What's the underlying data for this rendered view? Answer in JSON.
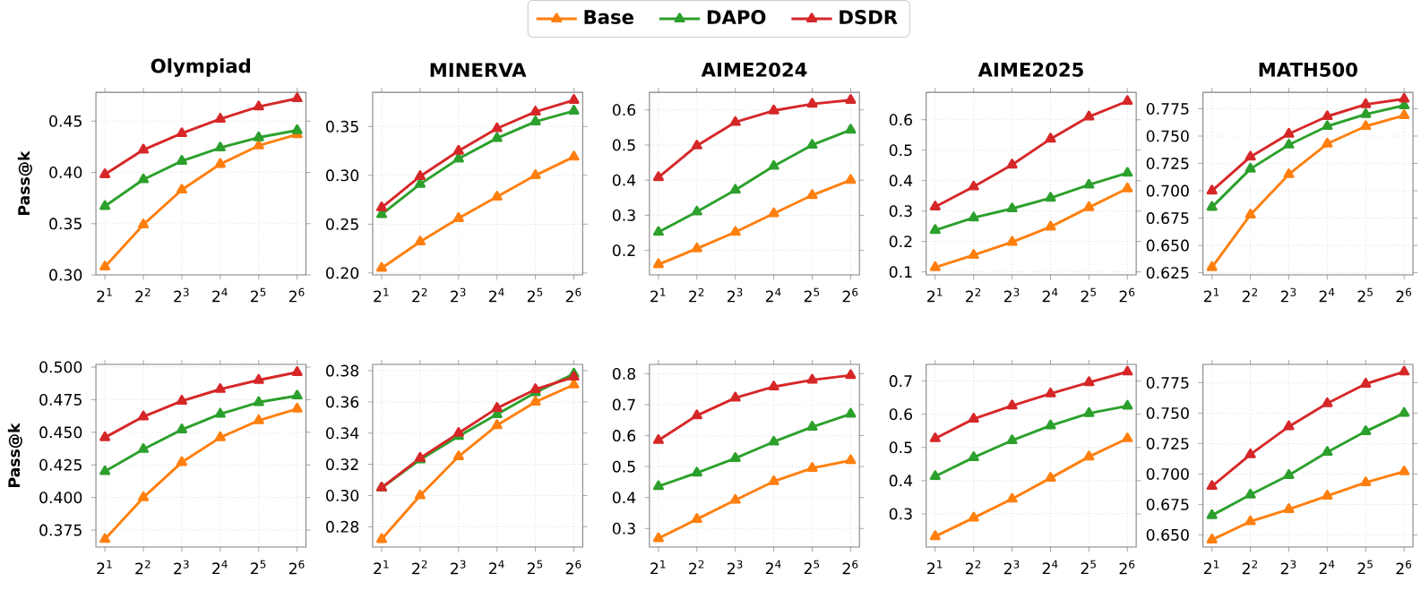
{
  "chart_data": [
    {
      "type": "line",
      "title": "Olympiad",
      "ylabel": "Pass@k",
      "log": "x",
      "grid": true,
      "marker": "triangle",
      "legend": "top",
      "x": [
        2,
        4,
        8,
        16,
        32,
        64
      ],
      "xlim": [
        1.7,
        75
      ],
      "xticks": [
        {
          "value": 2,
          "label": "2$^{1}$"
        },
        {
          "value": 4,
          "label": "2$^{2}$"
        },
        {
          "value": 8,
          "label": "2$^{3}$"
        },
        {
          "value": 16,
          "label": "2$^{4}$"
        },
        {
          "value": 32,
          "label": "2$^{5}$"
        },
        {
          "value": 64,
          "label": "2$^{6}$"
        }
      ],
      "ylim": [
        0.3,
        0.478
      ],
      "yticks": [
        {
          "value": 0.3,
          "label": "0.30"
        },
        {
          "value": 0.35,
          "label": "0.35"
        },
        {
          "value": 0.4,
          "label": "0.40"
        },
        {
          "value": 0.45,
          "label": "0.45"
        }
      ],
      "series": [
        {
          "name": "Base",
          "color": "#ff7f0e",
          "values": [
            0.308,
            0.349,
            0.383,
            0.408,
            0.426,
            0.437
          ]
        },
        {
          "name": "DAPO",
          "color": "#2ca02c",
          "values": [
            0.367,
            0.393,
            0.411,
            0.424,
            0.434,
            0.441
          ]
        },
        {
          "name": "DSDR",
          "color": "#d62728",
          "values": [
            0.398,
            0.422,
            0.438,
            0.452,
            0.464,
            0.472
          ]
        }
      ]
    },
    {
      "type": "line",
      "title": "MINERVA",
      "log": "x",
      "grid": true,
      "marker": "triangle",
      "x": [
        2,
        4,
        8,
        16,
        32,
        64
      ],
      "xlim": [
        1.7,
        75
      ],
      "xticks": [
        {
          "value": 2,
          "label": "2$^{1}$"
        },
        {
          "value": 4,
          "label": "2$^{2}$"
        },
        {
          "value": 8,
          "label": "2$^{3}$"
        },
        {
          "value": 16,
          "label": "2$^{4}$"
        },
        {
          "value": 32,
          "label": "2$^{5}$"
        },
        {
          "value": 64,
          "label": "2$^{6}$"
        }
      ],
      "ylim": [
        0.198,
        0.385
      ],
      "yticks": [
        {
          "value": 0.2,
          "label": "0.20"
        },
        {
          "value": 0.25,
          "label": "0.25"
        },
        {
          "value": 0.3,
          "label": "0.30"
        },
        {
          "value": 0.35,
          "label": "0.35"
        }
      ],
      "series": [
        {
          "color": "#ff7f0e",
          "values": [
            0.205,
            0.232,
            0.256,
            0.278,
            0.3,
            0.319
          ]
        },
        {
          "color": "#2ca02c",
          "values": [
            0.26,
            0.291,
            0.317,
            0.338,
            0.355,
            0.366
          ]
        },
        {
          "color": "#d62728",
          "values": [
            0.267,
            0.299,
            0.325,
            0.348,
            0.365,
            0.377
          ]
        }
      ]
    },
    {
      "type": "line",
      "title": "AIME2024",
      "log": "x",
      "grid": true,
      "marker": "triangle",
      "x": [
        2,
        4,
        8,
        16,
        32,
        64
      ],
      "xlim": [
        1.7,
        75
      ],
      "xticks": [
        {
          "value": 2,
          "label": "2$^{1}$"
        },
        {
          "value": 4,
          "label": "2$^{2}$"
        },
        {
          "value": 8,
          "label": "2$^{3}$"
        },
        {
          "value": 16,
          "label": "2$^{4}$"
        },
        {
          "value": 32,
          "label": "2$^{5}$"
        },
        {
          "value": 64,
          "label": "2$^{6}$"
        }
      ],
      "ylim": [
        0.13,
        0.65
      ],
      "yticks": [
        0.2,
        0.3,
        0.4,
        0.5,
        0.6
      ],
      "series": [
        {
          "color": "#ff7f0e",
          "values": [
            0.16,
            0.205,
            0.252,
            0.305,
            0.357,
            0.4
          ]
        },
        {
          "color": "#2ca02c",
          "values": [
            0.252,
            0.31,
            0.372,
            0.44,
            0.5,
            0.543
          ]
        },
        {
          "color": "#d62728",
          "values": [
            0.408,
            0.498,
            0.565,
            0.598,
            0.617,
            0.628
          ]
        }
      ]
    },
    {
      "type": "line",
      "title": "AIME2025",
      "log": "x",
      "grid": true,
      "marker": "triangle",
      "x": [
        2,
        4,
        8,
        16,
        32,
        64
      ],
      "xlim": [
        1.7,
        75
      ],
      "xticks": [
        {
          "value": 2,
          "label": "2$^{1}$"
        },
        {
          "value": 4,
          "label": "2$^{2}$"
        },
        {
          "value": 8,
          "label": "2$^{3}$"
        },
        {
          "value": 16,
          "label": "2$^{4}$"
        },
        {
          "value": 32,
          "label": "2$^{5}$"
        },
        {
          "value": 64,
          "label": "2$^{6}$"
        }
      ],
      "ylim": [
        0.09,
        0.69
      ],
      "yticks": [
        0.1,
        0.2,
        0.3,
        0.4,
        0.5,
        0.6
      ],
      "series": [
        {
          "color": "#ff7f0e",
          "values": [
            0.115,
            0.155,
            0.198,
            0.248,
            0.312,
            0.374
          ]
        },
        {
          "color": "#2ca02c",
          "values": [
            0.237,
            0.278,
            0.308,
            0.343,
            0.386,
            0.425
          ]
        },
        {
          "color": "#d62728",
          "values": [
            0.314,
            0.38,
            0.452,
            0.537,
            0.61,
            0.661
          ]
        }
      ]
    },
    {
      "type": "line",
      "title": "MATH500",
      "log": "x",
      "grid": true,
      "marker": "triangle",
      "x": [
        2,
        4,
        8,
        16,
        32,
        64
      ],
      "xlim": [
        1.7,
        75
      ],
      "xticks": [
        {
          "value": 2,
          "label": "2$^{1}$"
        },
        {
          "value": 4,
          "label": "2$^{2}$"
        },
        {
          "value": 8,
          "label": "2$^{3}$"
        },
        {
          "value": 16,
          "label": "2$^{4}$"
        },
        {
          "value": 32,
          "label": "2$^{5}$"
        },
        {
          "value": 64,
          "label": "2$^{6}$"
        }
      ],
      "ylim": [
        0.623,
        0.79
      ],
      "yticks": [
        0.625,
        {
          "value": 0.65,
          "label": "0.650"
        },
        0.675,
        {
          "value": 0.7,
          "label": "0.700"
        },
        0.725,
        {
          "value": 0.75,
          "label": "0.750"
        },
        0.775
      ],
      "series": [
        {
          "color": "#ff7f0e",
          "values": [
            0.63,
            0.678,
            0.715,
            0.743,
            0.759,
            0.769
          ]
        },
        {
          "color": "#2ca02c",
          "values": [
            0.685,
            0.72,
            0.742,
            0.759,
            0.77,
            0.778
          ]
        },
        {
          "color": "#d62728",
          "values": [
            0.7,
            0.731,
            0.752,
            0.768,
            0.779,
            0.784
          ]
        }
      ]
    },
    {
      "type": "line",
      "ylabel": "Pass@k",
      "log": "x",
      "grid": true,
      "marker": "triangle",
      "x": [
        2,
        4,
        8,
        16,
        32,
        64
      ],
      "xlim": [
        1.7,
        75
      ],
      "xticks": [
        {
          "value": 2,
          "label": "2$^{1}$"
        },
        {
          "value": 4,
          "label": "2$^{2}$"
        },
        {
          "value": 8,
          "label": "2$^{3}$"
        },
        {
          "value": 16,
          "label": "2$^{4}$"
        },
        {
          "value": 32,
          "label": "2$^{5}$"
        },
        {
          "value": 64,
          "label": "2$^{6}$"
        }
      ],
      "ylim": [
        0.362,
        0.502
      ],
      "yticks": [
        0.375,
        {
          "value": 0.4,
          "label": "0.400"
        },
        0.425,
        {
          "value": 0.45,
          "label": "0.450"
        },
        0.475,
        {
          "value": 0.5,
          "label": "0.500"
        }
      ],
      "series": [
        {
          "color": "#ff7f0e",
          "values": [
            0.368,
            0.4,
            0.427,
            0.446,
            0.459,
            0.468
          ]
        },
        {
          "color": "#2ca02c",
          "values": [
            0.42,
            0.437,
            0.452,
            0.464,
            0.473,
            0.478
          ]
        },
        {
          "color": "#d62728",
          "values": [
            0.446,
            0.462,
            0.474,
            0.483,
            0.49,
            0.496
          ]
        }
      ]
    },
    {
      "type": "line",
      "log": "x",
      "grid": true,
      "marker": "triangle",
      "x": [
        2,
        4,
        8,
        16,
        32,
        64
      ],
      "xlim": [
        1.7,
        75
      ],
      "xticks": [
        {
          "value": 2,
          "label": "2$^{1}$"
        },
        {
          "value": 4,
          "label": "2$^{2}$"
        },
        {
          "value": 8,
          "label": "2$^{3}$"
        },
        {
          "value": 16,
          "label": "2$^{4}$"
        },
        {
          "value": 32,
          "label": "2$^{5}$"
        },
        {
          "value": 64,
          "label": "2$^{6}$"
        }
      ],
      "ylim": [
        0.267,
        0.384
      ],
      "yticks": [
        0.28,
        {
          "value": 0.3,
          "label": "0.30"
        },
        0.32,
        0.34,
        0.36,
        0.38
      ],
      "series": [
        {
          "color": "#ff7f0e",
          "values": [
            0.272,
            0.3,
            0.325,
            0.345,
            0.36,
            0.371
          ]
        },
        {
          "color": "#2ca02c",
          "values": [
            0.305,
            0.323,
            0.338,
            0.352,
            0.366,
            0.378
          ]
        },
        {
          "color": "#d62728",
          "values": [
            0.305,
            0.324,
            0.34,
            0.356,
            0.368,
            0.376
          ]
        }
      ]
    },
    {
      "type": "line",
      "log": "x",
      "grid": true,
      "marker": "triangle",
      "x": [
        2,
        4,
        8,
        16,
        32,
        64
      ],
      "xlim": [
        1.7,
        75
      ],
      "xticks": [
        {
          "value": 2,
          "label": "2$^{1}$"
        },
        {
          "value": 4,
          "label": "2$^{2}$"
        },
        {
          "value": 8,
          "label": "2$^{3}$"
        },
        {
          "value": 16,
          "label": "2$^{4}$"
        },
        {
          "value": 32,
          "label": "2$^{5}$"
        },
        {
          "value": 64,
          "label": "2$^{6}$"
        }
      ],
      "ylim": [
        0.24,
        0.83
      ],
      "yticks": [
        0.3,
        0.4,
        0.5,
        0.6,
        0.7,
        0.8
      ],
      "series": [
        {
          "color": "#ff7f0e",
          "values": [
            0.268,
            0.33,
            0.392,
            0.452,
            0.495,
            0.52
          ]
        },
        {
          "color": "#2ca02c",
          "values": [
            0.436,
            0.48,
            0.527,
            0.58,
            0.628,
            0.67
          ]
        },
        {
          "color": "#d62728",
          "values": [
            0.585,
            0.665,
            0.722,
            0.758,
            0.78,
            0.795
          ]
        }
      ]
    },
    {
      "type": "line",
      "log": "x",
      "grid": true,
      "marker": "triangle",
      "x": [
        2,
        4,
        8,
        16,
        32,
        64
      ],
      "xlim": [
        1.7,
        75
      ],
      "xticks": [
        {
          "value": 2,
          "label": "2$^{1}$"
        },
        {
          "value": 4,
          "label": "2$^{2}$"
        },
        {
          "value": 8,
          "label": "2$^{3}$"
        },
        {
          "value": 16,
          "label": "2$^{4}$"
        },
        {
          "value": 32,
          "label": "2$^{5}$"
        },
        {
          "value": 64,
          "label": "2$^{6}$"
        }
      ],
      "ylim": [
        0.2,
        0.75
      ],
      "yticks": [
        0.3,
        0.4,
        0.5,
        0.6,
        0.7
      ],
      "series": [
        {
          "color": "#ff7f0e",
          "values": [
            0.232,
            0.288,
            0.345,
            0.408,
            0.472,
            0.527
          ]
        },
        {
          "color": "#2ca02c",
          "values": [
            0.413,
            0.47,
            0.521,
            0.566,
            0.603,
            0.625
          ]
        },
        {
          "color": "#d62728",
          "values": [
            0.527,
            0.586,
            0.626,
            0.662,
            0.696,
            0.728
          ]
        }
      ]
    },
    {
      "type": "line",
      "log": "x",
      "grid": true,
      "marker": "triangle",
      "x": [
        2,
        4,
        8,
        16,
        32,
        64
      ],
      "xlim": [
        1.7,
        75
      ],
      "xticks": [
        {
          "value": 2,
          "label": "2$^{1}$"
        },
        {
          "value": 4,
          "label": "2$^{2}$"
        },
        {
          "value": 8,
          "label": "2$^{3}$"
        },
        {
          "value": 16,
          "label": "2$^{4}$"
        },
        {
          "value": 32,
          "label": "2$^{5}$"
        },
        {
          "value": 64,
          "label": "2$^{6}$"
        }
      ],
      "ylim": [
        0.64,
        0.79
      ],
      "yticks": [
        {
          "value": 0.65,
          "label": "0.650"
        },
        0.675,
        {
          "value": 0.7,
          "label": "0.700"
        },
        0.725,
        {
          "value": 0.75,
          "label": "0.750"
        },
        0.775
      ],
      "series": [
        {
          "color": "#ff7f0e",
          "values": [
            0.646,
            0.661,
            0.671,
            0.682,
            0.693,
            0.702
          ]
        },
        {
          "color": "#2ca02c",
          "values": [
            0.666,
            0.683,
            0.699,
            0.718,
            0.735,
            0.75
          ]
        },
        {
          "color": "#d62728",
          "values": [
            0.69,
            0.716,
            0.739,
            0.758,
            0.774,
            0.784
          ]
        }
      ]
    }
  ]
}
